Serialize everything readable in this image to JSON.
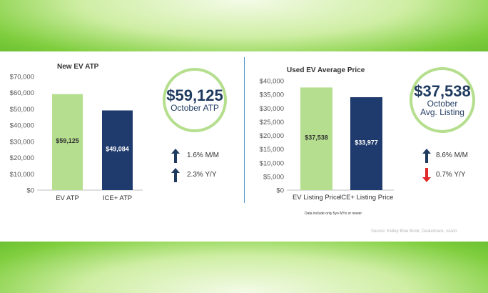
{
  "chart_data": [
    {
      "type": "bar",
      "title": "New EV ATP",
      "categories": [
        "EV ATP",
        "ICE+ ATP"
      ],
      "values": [
        59125,
        49084
      ],
      "value_labels": [
        "$59,125",
        "$49,084"
      ],
      "ylim": [
        0,
        70000
      ],
      "yticks": [
        "$0",
        "$10,000",
        "$20,000",
        "$30,000",
        "$40,000",
        "$50,000",
        "$60,000",
        "$70,000"
      ],
      "colors": [
        "#b5df8e",
        "#1f3a6d"
      ],
      "grid": false
    },
    {
      "type": "bar",
      "title": "Used EV Average Price",
      "categories": [
        "EV Listing Price",
        "ICE+ Listing Price"
      ],
      "values": [
        37538,
        33977
      ],
      "value_labels": [
        "$37,538",
        "$33,977"
      ],
      "ylim": [
        0,
        40000
      ],
      "yticks": [
        "$0",
        "$5,000",
        "$10,000",
        "$15,000",
        "$20,000",
        "$25,000",
        "$30,000",
        "$35,000",
        "$40,000"
      ],
      "colors": [
        "#b5df8e",
        "#1f3a6d"
      ],
      "grid": false
    }
  ],
  "callouts": {
    "new": {
      "value": "$59,125",
      "label": "October ATP"
    },
    "used": {
      "value": "$37,538",
      "label1": "October",
      "label2": "Avg. Listing"
    }
  },
  "stats": {
    "new": [
      {
        "text": "1.6% M/M",
        "direction": "up",
        "color": "#1f3a5f"
      },
      {
        "text": "2.3% Y/Y",
        "direction": "up",
        "color": "#1f3a5f"
      }
    ],
    "used": [
      {
        "text": "8.6% M/M",
        "direction": "up",
        "color": "#1f3a5f"
      },
      {
        "text": "0.7% Y/Y",
        "direction": "down",
        "color": "#e0292b"
      }
    ]
  },
  "note": "Data include only 5yo MYs or newer",
  "source": "Source: Kelley Blue Book, Dealertrack, vAuto"
}
